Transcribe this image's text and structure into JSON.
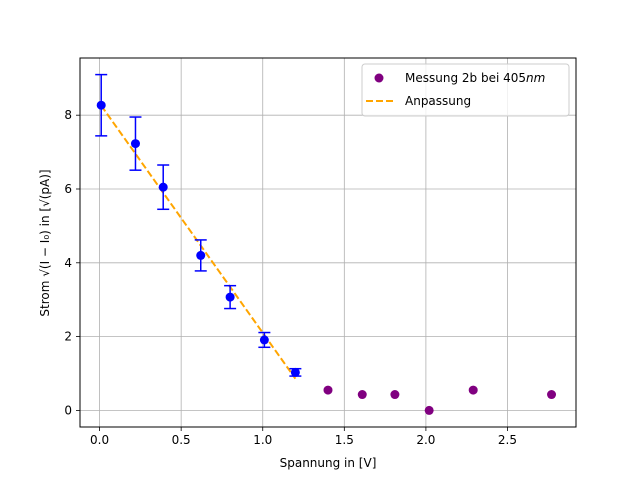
{
  "chart_data": {
    "type": "scatter",
    "xlabel": "Spannung in [V]",
    "ylabel": "Strom √(I − I₀) in [√(pA)]",
    "xlim": [
      -0.12,
      2.92
    ],
    "ylim": [
      -0.45,
      9.55
    ],
    "xticks": [
      0.0,
      0.5,
      1.0,
      1.5,
      2.0,
      2.5
    ],
    "xtick_labels": [
      "0.0",
      "0.5",
      "1.0",
      "1.5",
      "2.0",
      "2.5"
    ],
    "yticks": [
      0,
      2,
      4,
      6,
      8
    ],
    "ytick_labels": [
      "0",
      "2",
      "4",
      "6",
      "8"
    ],
    "grid": true,
    "legend_position": "top-right",
    "legend": {
      "measurement_label": "Messung 2b bei 405",
      "measurement_unit": "nm",
      "fit_label": "Anpassung"
    },
    "series": [
      {
        "name": "Messung 2b bei 405nm",
        "kind": "scatter",
        "color": "#800080",
        "x": [
          1.4,
          1.61,
          1.81,
          2.02,
          2.29,
          2.77
        ],
        "y": [
          0.55,
          0.43,
          0.43,
          0.0,
          0.55,
          0.43
        ]
      },
      {
        "name": "",
        "kind": "errorbar",
        "color": "#0000ff",
        "x": [
          0.01,
          0.22,
          0.39,
          0.62,
          0.8,
          1.01,
          1.2
        ],
        "y": [
          8.27,
          7.23,
          6.05,
          4.2,
          3.07,
          1.91,
          1.03
        ],
        "yerr": [
          0.83,
          0.72,
          0.6,
          0.42,
          0.31,
          0.2,
          0.1
        ]
      },
      {
        "name": "Anpassung",
        "kind": "line",
        "color": "#ffa500",
        "dashed": true,
        "x": [
          0.01,
          1.2
        ],
        "y": [
          8.26,
          0.86
        ]
      }
    ]
  }
}
